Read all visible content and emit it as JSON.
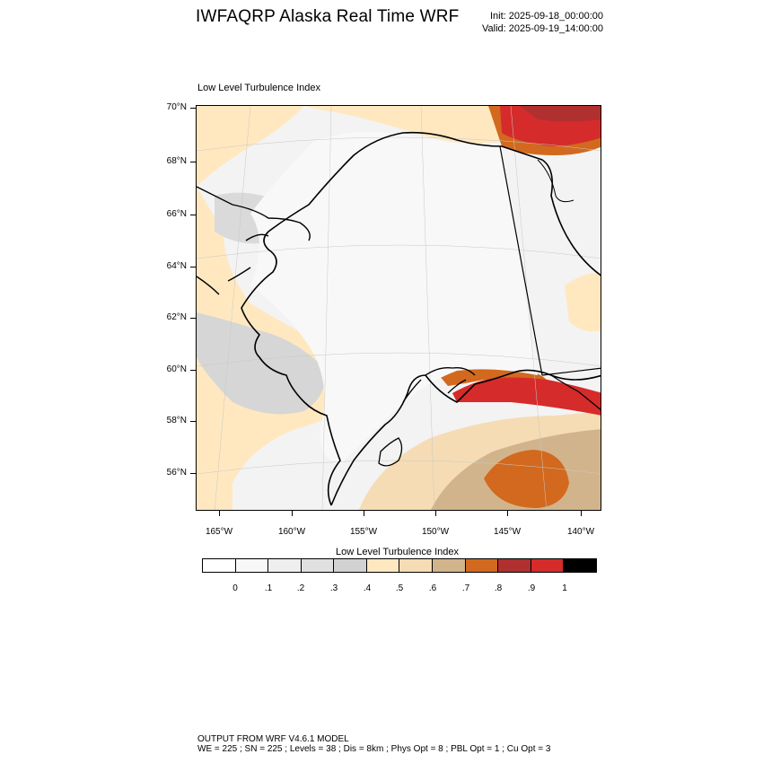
{
  "header": {
    "title": "IWFAQRP Alaska Real Time WRF",
    "init": "Init: 2025-09-18_00:00:00",
    "valid": "Valid: 2025-09-19_14:00:00"
  },
  "map": {
    "field_label": "Low Level Turbulence Index",
    "lat_labels": [
      "70°N",
      "68°N",
      "66°N",
      "64°N",
      "62°N",
      "60°N",
      "58°N",
      "56°N"
    ],
    "lon_labels": [
      "165°W",
      "160°W",
      "155°W",
      "150°W",
      "145°W",
      "140°W"
    ]
  },
  "colorbar": {
    "title": "Low Level Turbulence Index",
    "colors": [
      "#ffffff",
      "#f7f7f7",
      "#eeeeee",
      "#e0e0e0",
      "#d2d2d2",
      "#ffe8c0",
      "#f5dcb4",
      "#d2b48c",
      "#d2691e",
      "#b03030",
      "#d62b2b",
      "#000000"
    ],
    "labels": [
      "0",
      ".1",
      ".2",
      ".3",
      ".4",
      ".5",
      ".6",
      ".7",
      ".8",
      ".9",
      "1"
    ]
  },
  "footer": {
    "line1": "OUTPUT FROM WRF V4.6.1 MODEL",
    "line2": "WE = 225 ; SN = 225 ; Levels = 38 ; Dis = 8km ; Phys Opt = 8 ; PBL Opt = 1 ; Cu Opt = 3"
  }
}
